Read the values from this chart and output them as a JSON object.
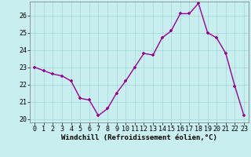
{
  "x": [
    0,
    1,
    2,
    3,
    4,
    5,
    6,
    7,
    8,
    9,
    10,
    11,
    12,
    13,
    14,
    15,
    16,
    17,
    18,
    19,
    20,
    21,
    22,
    23
  ],
  "y": [
    23.0,
    22.8,
    22.6,
    22.5,
    22.2,
    21.2,
    21.1,
    20.2,
    20.6,
    21.5,
    22.2,
    23.0,
    23.8,
    23.7,
    24.7,
    25.1,
    26.1,
    26.1,
    26.7,
    25.0,
    24.7,
    23.8,
    21.9,
    20.2
  ],
  "line_color": "#990099",
  "marker": "+",
  "bg_color": "#c8eef0",
  "grid_color": "#a0d8d8",
  "xlabel": "Windchill (Refroidissement éolien,°C)",
  "ylim": [
    19.8,
    26.8
  ],
  "xlim": [
    -0.5,
    23.5
  ],
  "yticks": [
    20,
    21,
    22,
    23,
    24,
    25,
    26
  ],
  "xticks": [
    0,
    1,
    2,
    3,
    4,
    5,
    6,
    7,
    8,
    9,
    10,
    11,
    12,
    13,
    14,
    15,
    16,
    17,
    18,
    19,
    20,
    21,
    22,
    23
  ],
  "xlabel_fontsize": 6.5,
  "tick_fontsize": 6,
  "line_width": 1.0,
  "marker_size": 3.5,
  "fig_width": 3.2,
  "fig_height": 2.0,
  "dpi": 100
}
